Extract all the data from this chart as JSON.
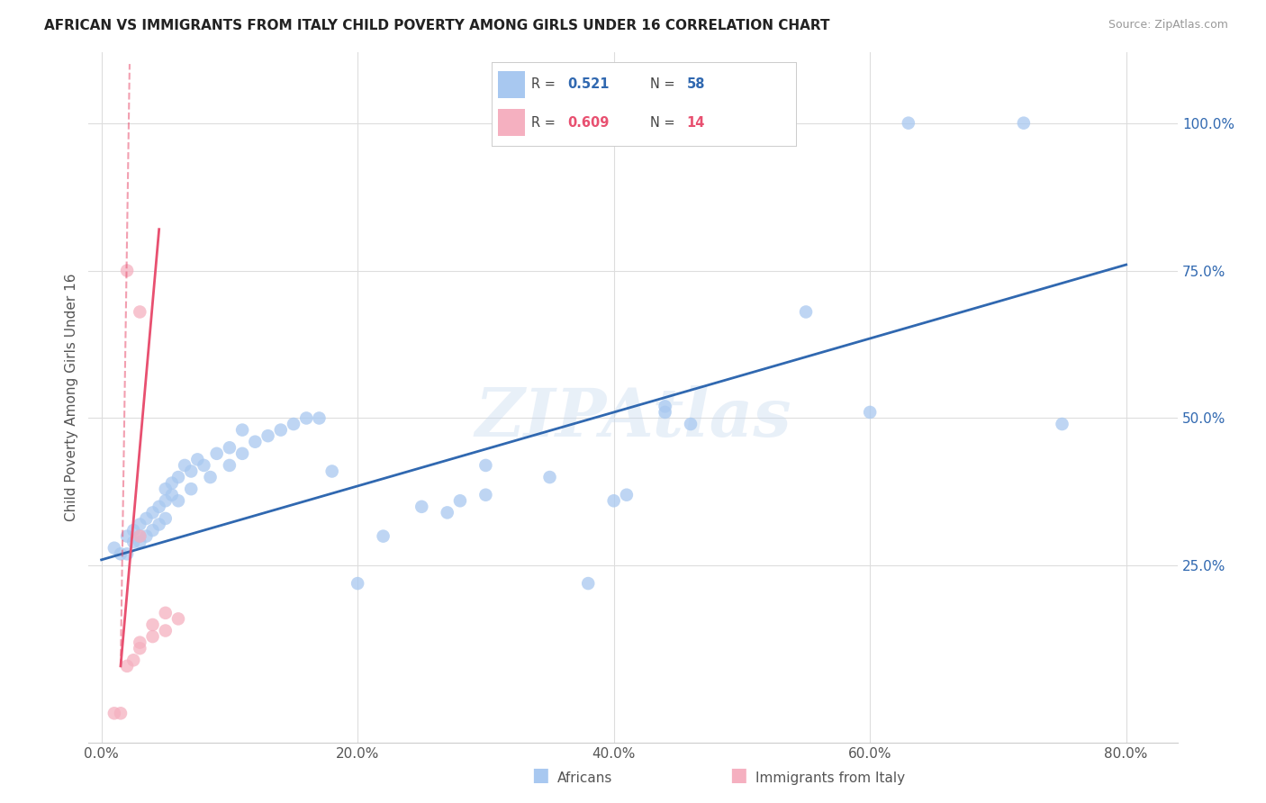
{
  "title": "AFRICAN VS IMMIGRANTS FROM ITALY CHILD POVERTY AMONG GIRLS UNDER 16 CORRELATION CHART",
  "source": "Source: ZipAtlas.com",
  "ylabel": "Child Poverty Among Girls Under 16",
  "x_tick_labels": [
    "0.0%",
    "20.0%",
    "40.0%",
    "60.0%",
    "80.0%"
  ],
  "x_tick_values": [
    0,
    20,
    40,
    60,
    80
  ],
  "y_tick_labels": [
    "25.0%",
    "50.0%",
    "75.0%",
    "100.0%"
  ],
  "y_tick_values": [
    25,
    50,
    75,
    100
  ],
  "xlim": [
    -1,
    84
  ],
  "ylim": [
    -5,
    112
  ],
  "blue_scatter_color": "#A8C8F0",
  "pink_scatter_color": "#F5B0C0",
  "blue_line_color": "#3068B0",
  "pink_line_color": "#E85070",
  "legend_label_blue": "Africans",
  "legend_label_pink": "Immigrants from Italy",
  "watermark": "ZIPAtlas",
  "blue_points": [
    [
      1,
      28
    ],
    [
      1.5,
      27
    ],
    [
      2,
      27
    ],
    [
      2,
      30
    ],
    [
      2.5,
      29
    ],
    [
      2.5,
      31
    ],
    [
      3,
      30
    ],
    [
      3,
      29
    ],
    [
      3,
      32
    ],
    [
      3.5,
      30
    ],
    [
      3.5,
      33
    ],
    [
      4,
      31
    ],
    [
      4,
      34
    ],
    [
      4.5,
      32
    ],
    [
      4.5,
      35
    ],
    [
      5,
      33
    ],
    [
      5,
      36
    ],
    [
      5,
      38
    ],
    [
      5.5,
      37
    ],
    [
      5.5,
      39
    ],
    [
      6,
      40
    ],
    [
      6,
      36
    ],
    [
      6.5,
      42
    ],
    [
      7,
      41
    ],
    [
      7,
      38
    ],
    [
      7.5,
      43
    ],
    [
      8,
      42
    ],
    [
      8.5,
      40
    ],
    [
      9,
      44
    ],
    [
      10,
      45
    ],
    [
      10,
      42
    ],
    [
      11,
      48
    ],
    [
      11,
      44
    ],
    [
      12,
      46
    ],
    [
      13,
      47
    ],
    [
      14,
      48
    ],
    [
      15,
      49
    ],
    [
      16,
      50
    ],
    [
      17,
      50
    ],
    [
      18,
      41
    ],
    [
      20,
      22
    ],
    [
      22,
      30
    ],
    [
      25,
      35
    ],
    [
      27,
      34
    ],
    [
      28,
      36
    ],
    [
      30,
      37
    ],
    [
      30,
      42
    ],
    [
      35,
      40
    ],
    [
      38,
      22
    ],
    [
      40,
      36
    ],
    [
      41,
      37
    ],
    [
      44,
      51
    ],
    [
      44,
      52
    ],
    [
      46,
      49
    ],
    [
      55,
      68
    ],
    [
      60,
      51
    ],
    [
      63,
      100
    ],
    [
      72,
      100
    ],
    [
      75,
      49
    ]
  ],
  "pink_points": [
    [
      1,
      0
    ],
    [
      1.5,
      0
    ],
    [
      2,
      8
    ],
    [
      2.5,
      9
    ],
    [
      3,
      11
    ],
    [
      3,
      12
    ],
    [
      4,
      13
    ],
    [
      4,
      15
    ],
    [
      5,
      17
    ],
    [
      5,
      14
    ],
    [
      6,
      16
    ],
    [
      3,
      30
    ],
    [
      3,
      68
    ],
    [
      2,
      75
    ]
  ],
  "blue_line_x": [
    0,
    80
  ],
  "blue_line_y": [
    26,
    76
  ],
  "pink_solid_x1": 1.5,
  "pink_solid_y1": 8,
  "pink_solid_x2": 4.5,
  "pink_solid_y2": 82,
  "pink_dash_x1": 1.5,
  "pink_dash_y1": 8,
  "pink_dash_x2": 2.2,
  "pink_dash_y2": 110
}
